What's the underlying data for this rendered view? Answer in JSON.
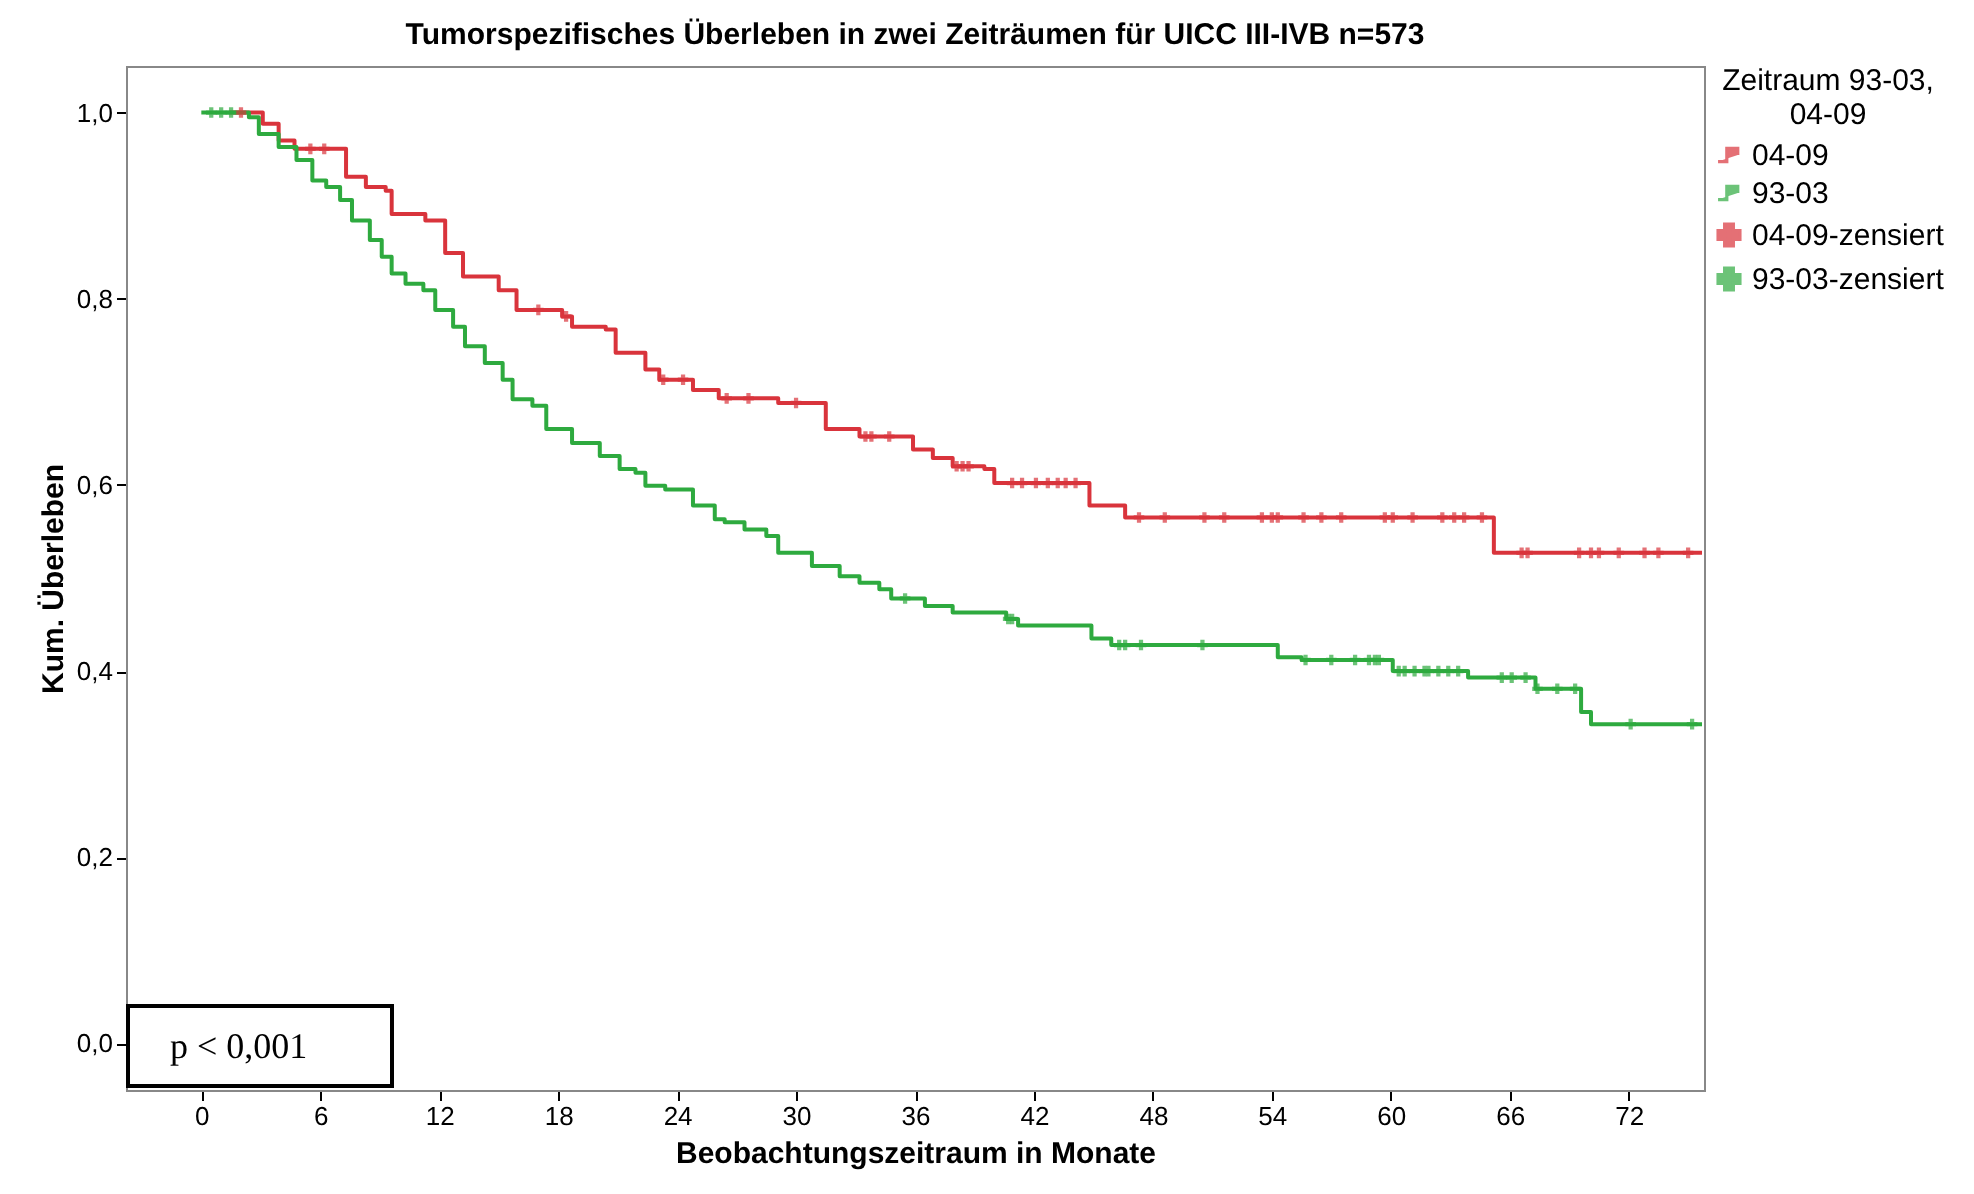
{
  "chart_data": {
    "type": "step",
    "title": "Tumorspezifisches Überleben in zwei Zeiträumen für UICC III-IVB  n=573",
    "xlabel": "Beobachtungszeitraum in Monate",
    "ylabel": "Kum. Überleben",
    "legend_title": "Zeitraum 93-03, 04-09",
    "legend": "top right",
    "grid": false,
    "line_style": "solid",
    "xlim": [
      -3.8,
      75.8
    ],
    "xticks": [
      0,
      6,
      12,
      18,
      24,
      30,
      36,
      42,
      48,
      54,
      60,
      66,
      72
    ],
    "ylim": [
      -0.05,
      1.05
    ],
    "yticks": [
      {
        "value": 0,
        "label": "0,0"
      },
      {
        "value": 0.2,
        "label": "0,2"
      },
      {
        "value": 0.4,
        "label": "0,4"
      },
      {
        "value": 0.6,
        "label": "0,6"
      },
      {
        "value": 0.8,
        "label": "0,8"
      },
      {
        "value": 1,
        "label": "1,0"
      }
    ],
    "annotations": [
      "p < 0,001"
    ],
    "series": [
      {
        "name": "04-09",
        "color": "#d9343c",
        "x": [
          1.4,
          3.1,
          3.9,
          4.7,
          7.3,
          8.3,
          9.3,
          9.6,
          11.3,
          12.3,
          13.2,
          15,
          15.9,
          18.2,
          18.7,
          20.4,
          20.9,
          22.4,
          23.1,
          24.8,
          26.1,
          29.1,
          31.5,
          33.2,
          35.9,
          36.9,
          37.9,
          39.5,
          40.0,
          44.8,
          46.6,
          65.2,
          75.7
        ],
        "values": [
          1.0,
          0.988,
          0.97,
          0.961,
          0.931,
          0.92,
          0.916,
          0.891,
          0.884,
          0.849,
          0.824,
          0.809,
          0.788,
          0.781,
          0.77,
          0.767,
          0.742,
          0.724,
          0.713,
          0.702,
          0.693,
          0.688,
          0.66,
          0.652,
          0.638,
          0.629,
          0.62,
          0.617,
          0.602,
          0.578,
          0.565,
          0.527,
          0.527
        ]
      },
      {
        "name": "93-03",
        "color": "#2eaa3f",
        "x": [
          0,
          2.4,
          2.9,
          3.9,
          4.8,
          5.6,
          6.3,
          7,
          7.6,
          8.5,
          9.1,
          9.6,
          10.3,
          11.2,
          11.8,
          12.7,
          13.3,
          14.3,
          15.2,
          15.7,
          16.7,
          17.4,
          18.7,
          20.1,
          21.1,
          21.9,
          22.4,
          23.4,
          24.8,
          25.9,
          26.4,
          27.4,
          28.5,
          29.1,
          30.8,
          32.2,
          33.2,
          34.2,
          34.8,
          36.5,
          37.9,
          40.6,
          41.2,
          44.9,
          45.9,
          54.3,
          55.5,
          60.1,
          63.9,
          67.3,
          69.6,
          70.1,
          75.7
        ],
        "values": [
          1.0,
          0.995,
          0.977,
          0.963,
          0.949,
          0.927,
          0.92,
          0.906,
          0.884,
          0.863,
          0.845,
          0.827,
          0.816,
          0.809,
          0.788,
          0.77,
          0.749,
          0.731,
          0.713,
          0.692,
          0.685,
          0.66,
          0.645,
          0.631,
          0.617,
          0.613,
          0.599,
          0.595,
          0.578,
          0.563,
          0.56,
          0.552,
          0.545,
          0.527,
          0.513,
          0.502,
          0.495,
          0.488,
          0.478,
          0.47,
          0.463,
          0.456,
          0.449,
          0.435,
          0.428,
          0.415,
          0.412,
          0.4,
          0.393,
          0.381,
          0.356,
          0.343,
          0.343
        ]
      },
      {
        "name": "04-09-zensiert",
        "type": "scatter",
        "marker": "cross",
        "color": "#d9343c",
        "x": [
          2,
          5.5,
          6.2,
          17,
          18.4,
          23.3,
          24.3,
          26.5,
          27.6,
          30,
          33.5,
          33.8,
          34.7,
          38.1,
          38.4,
          38.7,
          40.9,
          41.4,
          42.1,
          42.7,
          43.2,
          43.6,
          44.1,
          47.3,
          48.6,
          50.6,
          51.6,
          53.5,
          54.0,
          54.3,
          55.6,
          56.5,
          57.5,
          59.7,
          60.1,
          61.1,
          62.6,
          63.2,
          63.7,
          64.6,
          66.6,
          66.9,
          69.5,
          70.1,
          70.5,
          71.5,
          72.8,
          73.5,
          75.0
        ],
        "values": [
          1.0,
          0.961,
          0.961,
          0.788,
          0.781,
          0.713,
          0.713,
          0.693,
          0.693,
          0.688,
          0.652,
          0.652,
          0.652,
          0.62,
          0.62,
          0.62,
          0.602,
          0.602,
          0.602,
          0.602,
          0.602,
          0.602,
          0.602,
          0.565,
          0.565,
          0.565,
          0.565,
          0.565,
          0.565,
          0.565,
          0.565,
          0.565,
          0.565,
          0.565,
          0.565,
          0.565,
          0.565,
          0.565,
          0.565,
          0.565,
          0.527,
          0.527,
          0.527,
          0.527,
          0.527,
          0.527,
          0.527,
          0.527,
          0.527
        ]
      },
      {
        "name": "93-03-zensiert",
        "type": "scatter",
        "marker": "cross",
        "color": "#2eaa3f",
        "x": [
          0.5,
          1,
          1.5,
          35.5,
          40.9,
          40.7,
          46.3,
          46.6,
          47.4,
          50.5,
          55.7,
          57.0,
          58.2,
          58.9,
          59.2,
          59.4,
          60.4,
          60.7,
          61.2,
          61.7,
          61.9,
          62.4,
          62.9,
          63.4,
          65.6,
          66.1,
          66.8,
          67.4,
          68.4,
          69.3,
          72.1,
          75.2
        ],
        "values": [
          1.0,
          1.0,
          1.0,
          0.478,
          0.456,
          0.456,
          0.428,
          0.428,
          0.428,
          0.428,
          0.412,
          0.412,
          0.412,
          0.412,
          0.412,
          0.412,
          0.4,
          0.4,
          0.4,
          0.4,
          0.4,
          0.4,
          0.4,
          0.4,
          0.393,
          0.393,
          0.393,
          0.381,
          0.381,
          0.381,
          0.343,
          0.343
        ]
      }
    ]
  }
}
